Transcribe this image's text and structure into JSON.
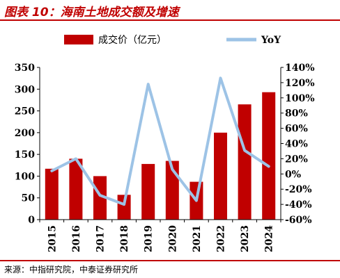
{
  "title": "图表 10：海南土地成交额及增速",
  "source": "来源：中指研究院，中泰证券研究所",
  "chart_data": {
    "type": "bar",
    "categories": [
      "2015",
      "2016",
      "2017",
      "2018",
      "2019",
      "2020",
      "2021",
      "2022",
      "2023",
      "2024"
    ],
    "series": [
      {
        "name": "成交价（亿元）",
        "type": "bar",
        "axis": "left",
        "color": "#c00000",
        "values": [
          117,
          140,
          100,
          57,
          128,
          135,
          87,
          200,
          265,
          293
        ]
      },
      {
        "name": "YoY",
        "type": "line",
        "axis": "right",
        "color": "#9dc3e6",
        "values": [
          4,
          20,
          -28,
          -40,
          118,
          6,
          -35,
          126,
          31,
          10
        ]
      }
    ],
    "y_left": {
      "min": 0,
      "max": 350,
      "ticks": [
        "0",
        "50",
        "100",
        "150",
        "200",
        "250",
        "300",
        "350"
      ]
    },
    "y_right": {
      "min": -60,
      "max": 140,
      "ticks": [
        "-60%",
        "-40%",
        "-20%",
        "0%",
        "20%",
        "40%",
        "60%",
        "80%",
        "100%",
        "120%",
        "140%"
      ]
    },
    "legend_position": "top",
    "grid": false
  }
}
